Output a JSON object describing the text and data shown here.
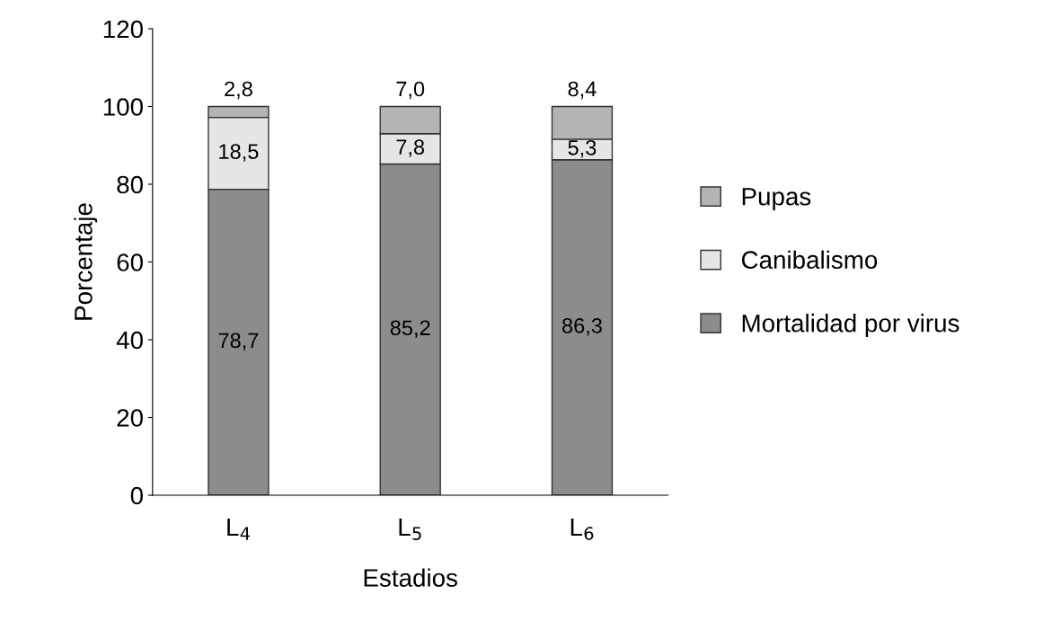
{
  "chart_data": {
    "type": "bar",
    "stacked": true,
    "xlabel": "Estadios",
    "ylabel": "Porcentaje",
    "categories": [
      "L$_{4}$",
      "L$_{5}$",
      "L$_{6}$"
    ],
    "series": [
      {
        "name": "Mortalidad por virus",
        "color": "#8c8c8c",
        "values": [
          78.7,
          85.2,
          86.3
        ],
        "value_labels": [
          "78,7",
          "85,2",
          "86,3"
        ]
      },
      {
        "name": "Canibalismo",
        "color": "#e6e6e6",
        "values": [
          18.5,
          7.8,
          5.3
        ],
        "value_labels": [
          "18,5",
          "7,8",
          "5,3"
        ]
      },
      {
        "name": "Pupas",
        "color": "#b4b4b4",
        "values": [
          2.8,
          7.0,
          8.4
        ],
        "value_labels": [
          "2,8",
          "7,0",
          "8,4"
        ]
      }
    ],
    "ylim": [
      0,
      120
    ],
    "yticks": [
      0,
      20,
      40,
      60,
      80,
      100,
      120
    ],
    "legend": "right",
    "grid": false
  }
}
